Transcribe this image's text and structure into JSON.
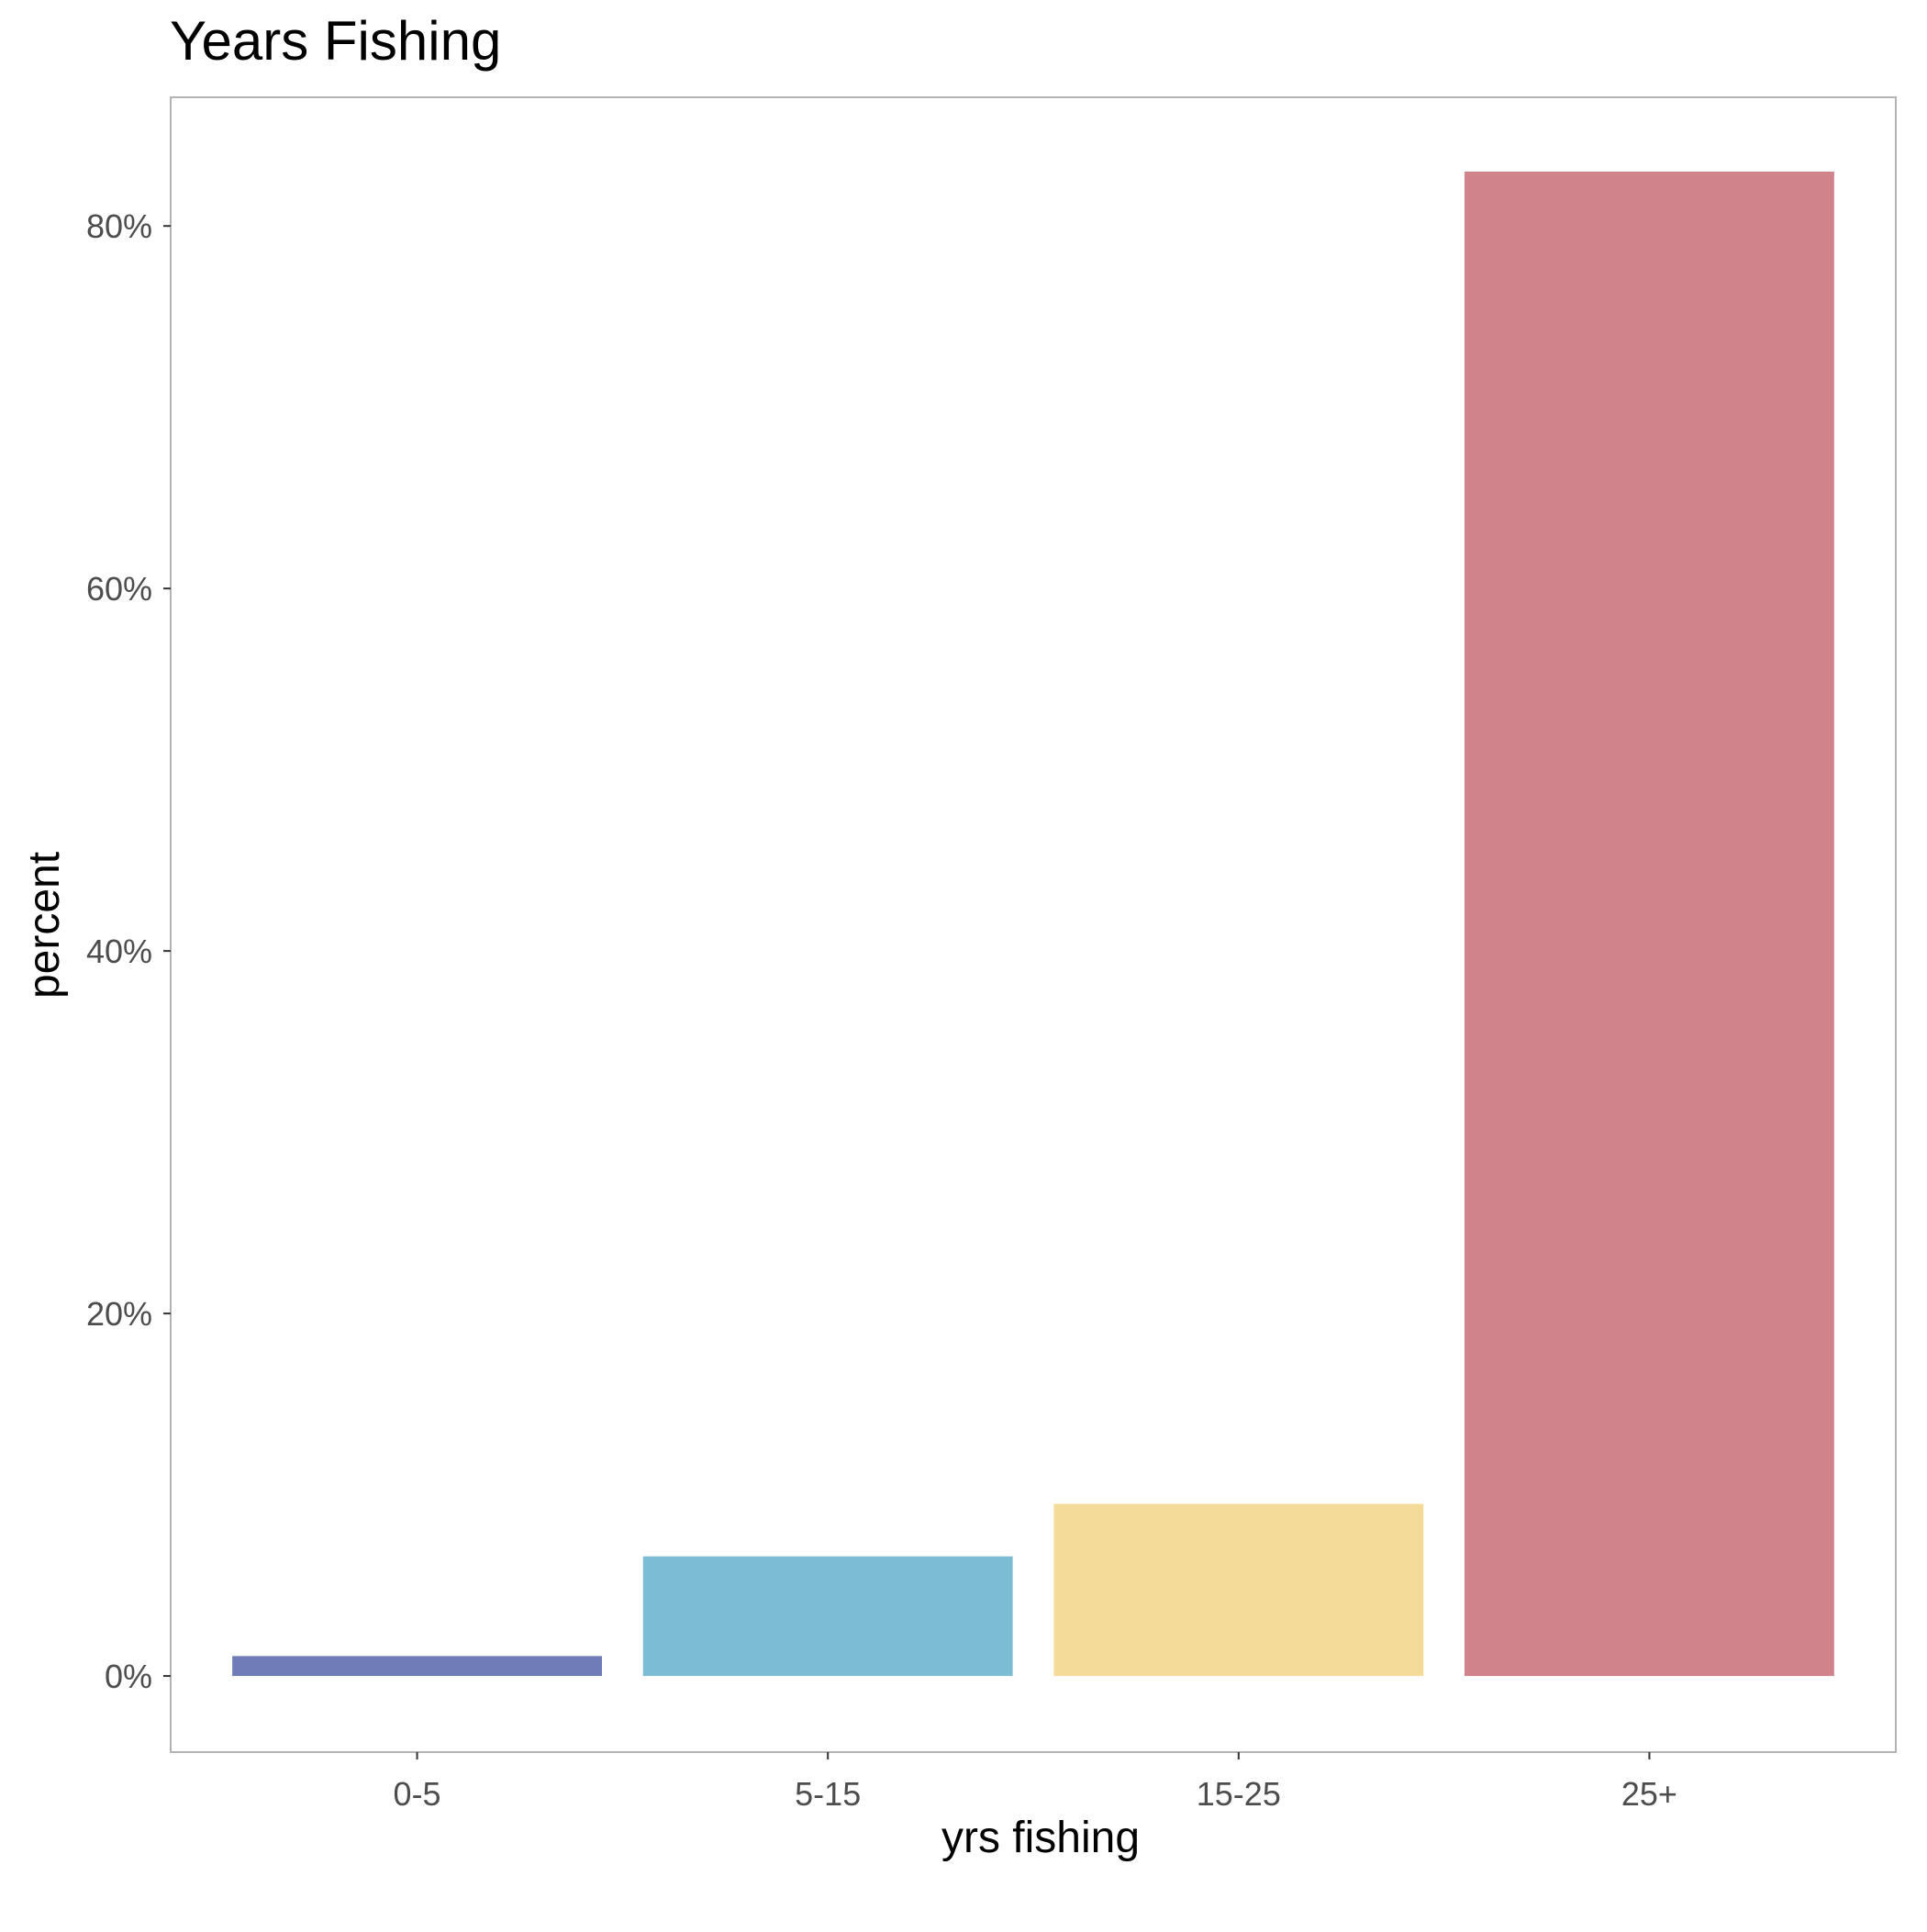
{
  "chart_data": {
    "type": "bar",
    "title": "Years Fishing",
    "xlabel": "yrs fishing",
    "ylabel": "percent",
    "categories": [
      "0-5",
      "5-15",
      "15-25",
      "25+"
    ],
    "values": [
      1.1,
      6.6,
      9.5,
      83.0
    ],
    "colors": [
      "#6f7cb8",
      "#7dbcd5",
      "#f4db99",
      "#d1838b"
    ],
    "ylim": [
      -4.2,
      87.1
    ],
    "y_ticks": [
      0,
      20,
      40,
      60,
      80
    ],
    "y_tick_labels": [
      "0%",
      "20%",
      "40%",
      "60%",
      "80%"
    ],
    "grid": false,
    "legend": "none"
  }
}
